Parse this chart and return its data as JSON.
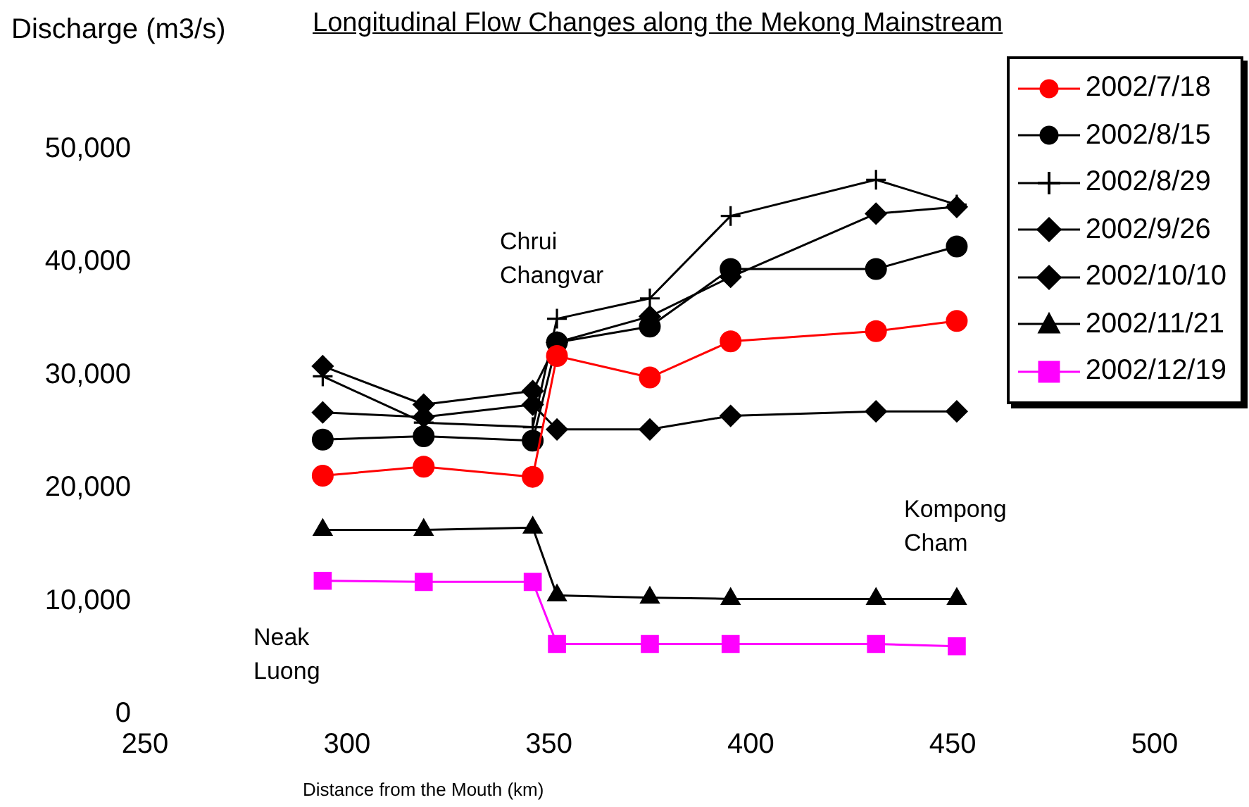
{
  "chart_data": {
    "type": "line",
    "title": "Longitudinal Flow Changes along the Mekong Mainstream",
    "xlabel": "Distance from the Mouth (km)",
    "ylabel": "Discharge (m3/s)",
    "x": [
      294,
      319,
      346,
      352,
      375,
      395,
      431,
      451
    ],
    "series": [
      {
        "name": "2002/7/18",
        "color": "#ff0000",
        "marker": "circle",
        "values": [
          21100,
          21900,
          21000,
          31700,
          29800,
          33000,
          33900,
          34800
        ]
      },
      {
        "name": "2002/8/15",
        "color": "#000000",
        "marker": "circle",
        "values": [
          24300,
          24600,
          24200,
          32900,
          34300,
          39400,
          39400,
          41400
        ]
      },
      {
        "name": "2002/8/29",
        "color": "#000000",
        "marker": "cross",
        "values": [
          29900,
          25800,
          25400,
          35000,
          36800,
          44100,
          47300,
          45100
        ]
      },
      {
        "name": "2002/9/26",
        "color": "#000000",
        "marker": "diamond",
        "values": [
          30800,
          27400,
          28600,
          32900,
          35200,
          38700,
          44300,
          44900
        ]
      },
      {
        "name": "2002/10/10",
        "color": "#000000",
        "marker": "diamond",
        "values": [
          26700,
          26300,
          27400,
          25200,
          25200,
          26400,
          26800,
          26800
        ]
      },
      {
        "name": "2002/11/21",
        "color": "#000000",
        "marker": "triangle",
        "values": [
          16300,
          16300,
          16500,
          10500,
          10300,
          10200,
          10200,
          10200
        ]
      },
      {
        "name": "2002/12/19",
        "color": "#ff00ff",
        "marker": "square",
        "values": [
          11800,
          11700,
          11700,
          6200,
          6200,
          6200,
          6200,
          6000
        ]
      }
    ],
    "xlim": [
      250,
      500
    ],
    "xticks": [
      250,
      300,
      350,
      400,
      450,
      500
    ],
    "ylim": [
      0,
      50000
    ],
    "yticks": [
      {
        "value": 0,
        "label": "0"
      },
      {
        "value": 10000,
        "label": "10,000"
      },
      {
        "value": 20000,
        "label": "20,000"
      },
      {
        "value": 30000,
        "label": "30,000"
      },
      {
        "value": 40000,
        "label": "40,000"
      },
      {
        "value": 50000,
        "label": "50,000"
      }
    ],
    "annotations": [
      "Neak Luong",
      "Chrui Changvar",
      "Kompong Cham"
    ],
    "grid": false,
    "legend": "top right",
    "line_style": "solid"
  }
}
